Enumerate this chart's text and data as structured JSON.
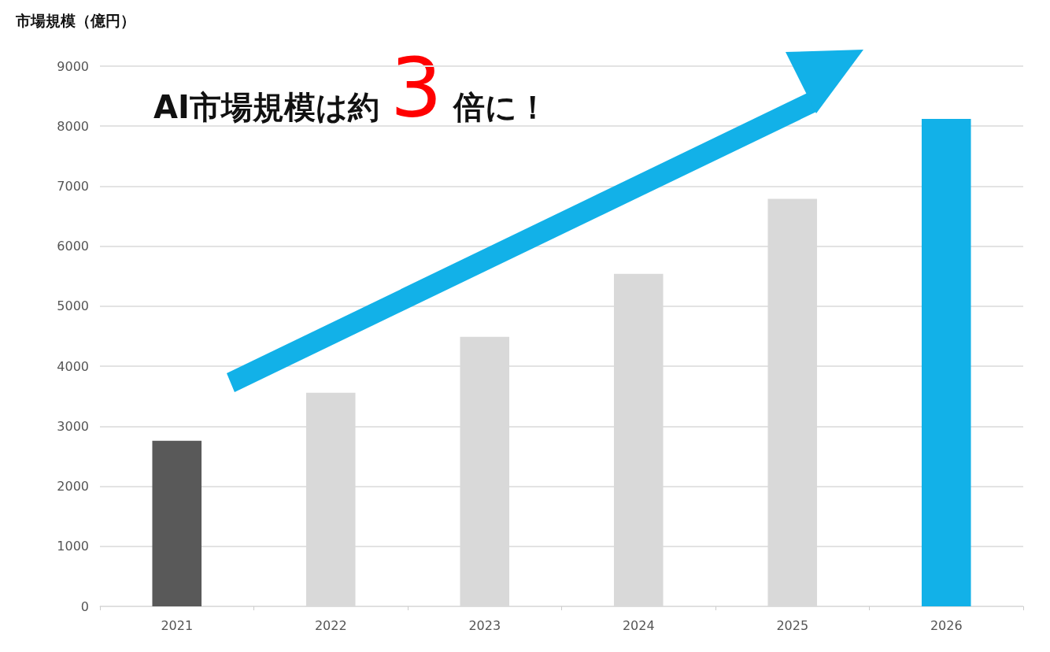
{
  "chart_data": {
    "type": "bar",
    "ylabel": "市場規模（億円）",
    "categories": [
      "2021",
      "2022",
      "2023",
      "2024",
      "2025",
      "2026"
    ],
    "values": [
      2760,
      3560,
      4490,
      5540,
      6790,
      8120
    ],
    "colors": [
      "#595959",
      "#d9d9d9",
      "#d9d9d9",
      "#d9d9d9",
      "#d9d9d9",
      "#12b1e8"
    ],
    "ylim": [
      0,
      9000
    ],
    "yticks": [
      0,
      1000,
      2000,
      3000,
      4000,
      5000,
      6000,
      7000,
      8000,
      9000
    ],
    "grid": "y",
    "annotations": [
      "AI市場規模は約3倍に！"
    ]
  }
}
